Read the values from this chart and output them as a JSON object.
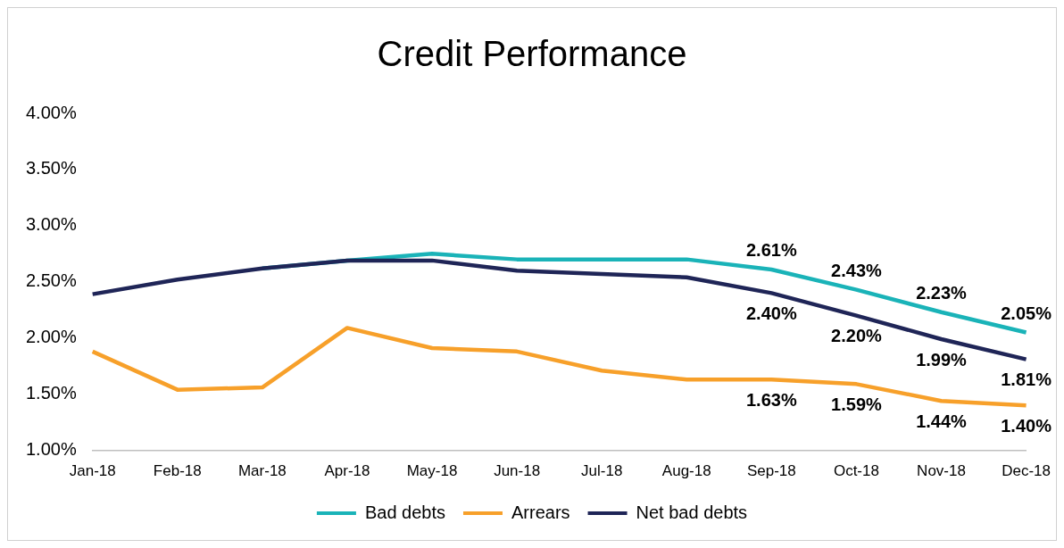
{
  "chart_data": {
    "type": "line",
    "title": "Credit Performance",
    "categories": [
      "Jan-18",
      "Feb-18",
      "Mar-18",
      "Apr-18",
      "May-18",
      "Jun-18",
      "Jul-18",
      "Aug-18",
      "Sep-18",
      "Oct-18",
      "Nov-18",
      "Dec-18"
    ],
    "series": [
      {
        "name": "Bad debts",
        "color": "#1ab3b8",
        "values": [
          null,
          null,
          2.62,
          2.69,
          2.75,
          2.7,
          2.7,
          2.7,
          2.61,
          2.43,
          2.23,
          2.05
        ],
        "value_labels": [
          null,
          null,
          null,
          null,
          null,
          null,
          null,
          null,
          "2.61%",
          "2.43%",
          "2.23%",
          "2.05%"
        ]
      },
      {
        "name": "Arrears",
        "color": "#f7a02a",
        "values": [
          1.88,
          1.54,
          1.56,
          2.09,
          1.91,
          1.88,
          1.71,
          1.63,
          1.63,
          1.59,
          1.44,
          1.4
        ],
        "value_labels": [
          null,
          null,
          null,
          null,
          null,
          null,
          null,
          null,
          "1.63%",
          "1.59%",
          "1.44%",
          "1.40%"
        ]
      },
      {
        "name": "Net bad debts",
        "color": "#1f2557",
        "values": [
          2.39,
          2.52,
          2.62,
          2.69,
          2.69,
          2.6,
          2.57,
          2.54,
          2.4,
          2.2,
          1.99,
          1.81
        ],
        "value_labels": [
          null,
          null,
          null,
          null,
          null,
          null,
          null,
          null,
          "2.40%",
          "2.20%",
          "1.99%",
          "1.81%"
        ]
      }
    ],
    "ylim": [
      1,
      4
    ],
    "yticks": [
      {
        "value": 1,
        "label": "1.00%"
      },
      {
        "value": 1.5,
        "label": "1.50%"
      },
      {
        "value": 2,
        "label": "2.00%"
      },
      {
        "value": 2.5,
        "label": "2.50%"
      },
      {
        "value": 3,
        "label": "3.00%"
      },
      {
        "value": 3.5,
        "label": "3.50%"
      },
      {
        "value": 4,
        "label": "4.00%"
      }
    ],
    "grid": false,
    "legend": "bottom",
    "marker": "none",
    "line_style": "solid"
  }
}
